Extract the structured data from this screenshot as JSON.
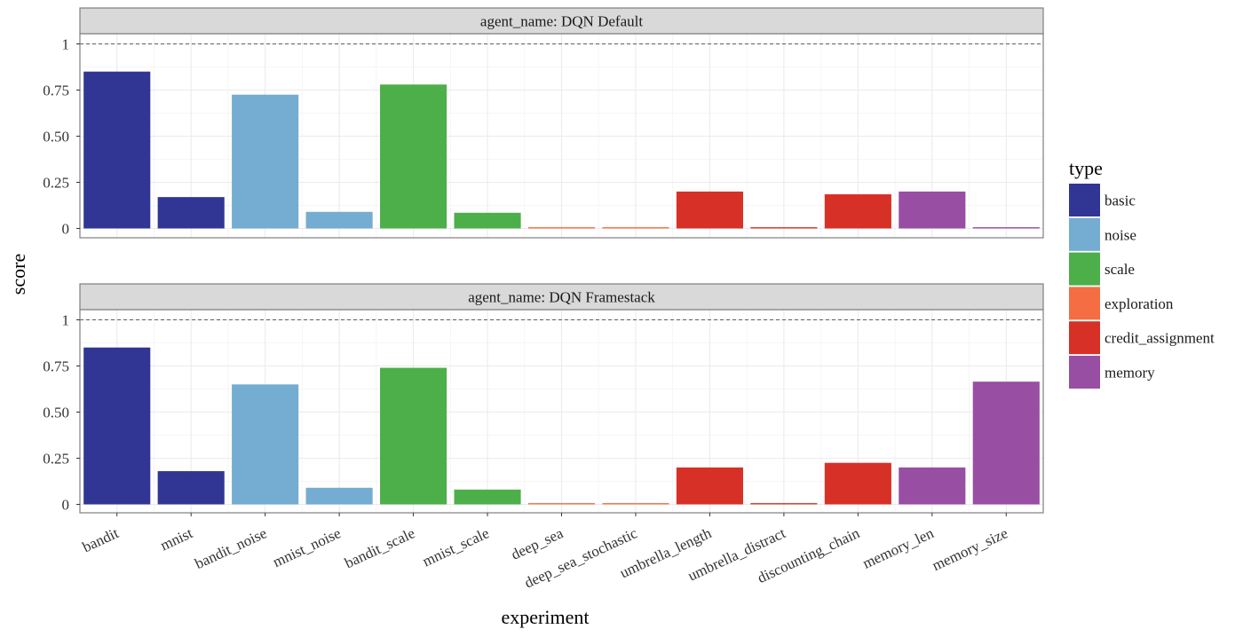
{
  "chart_data": {
    "type": "bar",
    "xlabel": "experiment",
    "ylabel": "score",
    "ylim": [
      0,
      1
    ],
    "yticks": [
      0,
      0.25,
      0.5,
      0.75,
      1
    ],
    "ytick_labels": [
      "0",
      "0.25",
      "0.50",
      "0.75",
      "1"
    ],
    "reference_line": 1,
    "grid": true,
    "legend_position": "right",
    "categories": [
      "bandit",
      "mnist",
      "bandit_noise",
      "mnist_noise",
      "bandit_scale",
      "mnist_scale",
      "deep_sea",
      "deep_sea_stochastic",
      "umbrella_length",
      "umbrella_distract",
      "discounting_chain",
      "memory_len",
      "memory_size"
    ],
    "category_types": [
      "basic",
      "basic",
      "noise",
      "noise",
      "scale",
      "scale",
      "exploration",
      "exploration",
      "credit_assignment",
      "credit_assignment",
      "credit_assignment",
      "memory",
      "memory"
    ],
    "legend": {
      "title": "type",
      "entries": [
        {
          "label": "basic",
          "color": "#313695"
        },
        {
          "label": "noise",
          "color": "#74add1"
        },
        {
          "label": "scale",
          "color": "#4daf4a"
        },
        {
          "label": "exploration",
          "color": "#f46d43"
        },
        {
          "label": "credit_assignment",
          "color": "#d73027"
        },
        {
          "label": "memory",
          "color": "#984ea3"
        }
      ]
    },
    "panels": [
      {
        "title": "agent_name: DQN Default",
        "values": [
          0.85,
          0.17,
          0.725,
          0.09,
          0.78,
          0.085,
          0.0,
          0.0,
          0.2,
          0.0,
          0.185,
          0.2,
          0.0
        ]
      },
      {
        "title": "agent_name: DQN Framestack",
        "values": [
          0.85,
          0.18,
          0.65,
          0.09,
          0.74,
          0.08,
          0.0,
          0.0,
          0.2,
          0.0,
          0.225,
          0.2,
          0.665
        ]
      }
    ]
  }
}
